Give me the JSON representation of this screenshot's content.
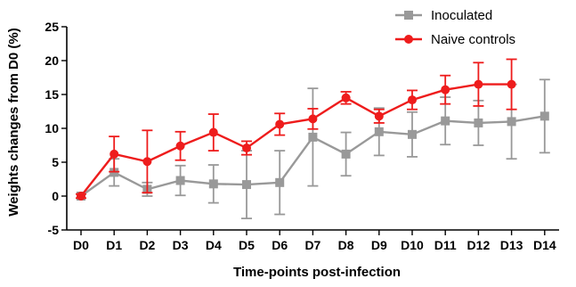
{
  "chart_data": {
    "type": "line",
    "title": "",
    "xlabel": "Time-points post-infection",
    "ylabel": "Weights changes from D0 (%)",
    "categories": [
      "D0",
      "D1",
      "D2",
      "D3",
      "D4",
      "D5",
      "D6",
      "D7",
      "D8",
      "D9",
      "D10",
      "D11",
      "D12",
      "D13",
      "D14"
    ],
    "ylim": [
      -5,
      25
    ],
    "yticks": [
      -5,
      0,
      5,
      10,
      15,
      20,
      25
    ],
    "grid": false,
    "legend": "top-right",
    "series": [
      {
        "name": "Inoculated",
        "color": "#999999",
        "marker": "square",
        "values": [
          0,
          3.5,
          1.0,
          2.3,
          1.8,
          1.7,
          2.0,
          8.7,
          6.2,
          9.5,
          9.1,
          11.1,
          10.8,
          11.0,
          11.8
        ],
        "error": [
          0.3,
          2.0,
          1.0,
          2.2,
          2.8,
          5.0,
          4.7,
          7.2,
          3.2,
          3.5,
          3.3,
          3.5,
          3.3,
          5.5,
          5.4
        ]
      },
      {
        "name": "Naive controls",
        "color": "#ee1c1c",
        "marker": "circle",
        "values": [
          0,
          6.2,
          5.1,
          7.4,
          9.4,
          7.1,
          10.6,
          11.4,
          14.5,
          11.8,
          14.2,
          15.7,
          16.5,
          16.5,
          null
        ],
        "error": [
          0.3,
          2.6,
          4.6,
          2.1,
          2.7,
          1.0,
          1.6,
          1.5,
          0.9,
          1.0,
          1.4,
          2.1,
          3.2,
          3.7,
          null
        ]
      }
    ]
  }
}
